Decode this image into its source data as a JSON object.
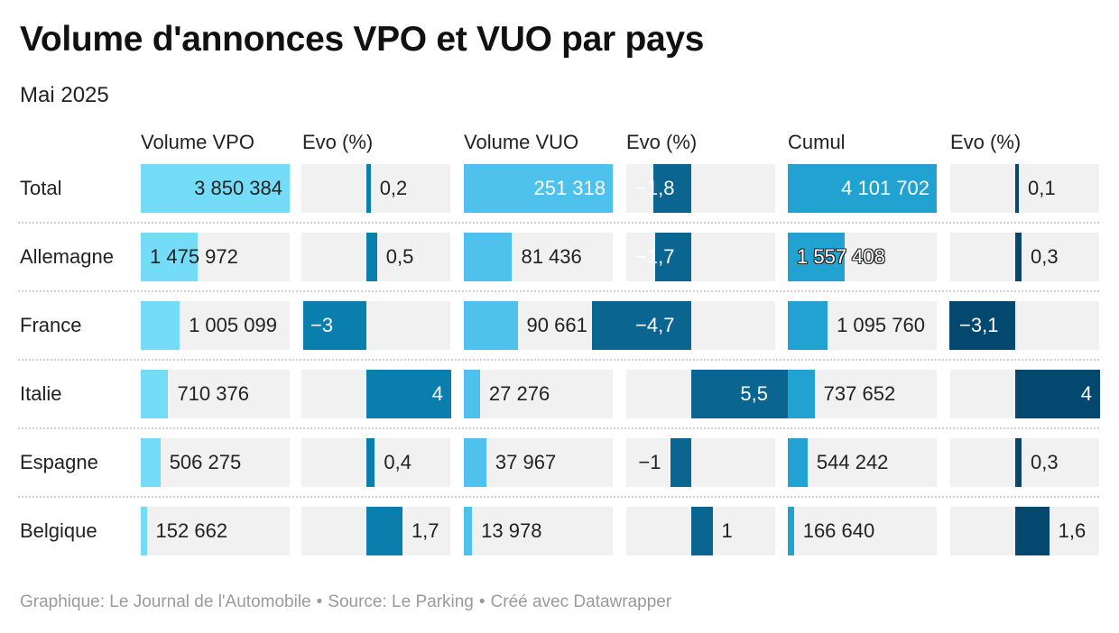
{
  "title": "Volume d'annonces VPO et VUO par pays",
  "subtitle": "Mai 2025",
  "columns": [
    "Volume VPO",
    "Evo (%)",
    "Volume VUO",
    "Evo (%)",
    "Cumul",
    "Evo (%)"
  ],
  "footer": {
    "credit": "Graphique: Le Journal de l'Automobile",
    "source": "Source: Le Parking",
    "tool": "Créé avec Datawrapper"
  },
  "colors": {
    "vpo": "#74dcf6",
    "vuo": "#4ec1ec",
    "cumul": "#22a2d0",
    "evo_vpo": "#0a7fad",
    "evo_vuo": "#0a6591",
    "evo_cumul": "#04476f",
    "cell_bg": "#f1f1f1"
  },
  "chart_data": {
    "type": "table",
    "rows": [
      {
        "country": "Total",
        "vpo": 3850384,
        "vpo_label": "3 850 384",
        "evo_vpo": 0.2,
        "evo_vpo_label": "0,2",
        "vuo": 251318,
        "vuo_label": "251 318",
        "evo_vuo": -1.8,
        "evo_vuo_label": "−1,8",
        "cumul": 4101702,
        "cumul_label": "4 101 702",
        "evo_cumul": 0.1,
        "evo_cumul_label": "0,1"
      },
      {
        "country": "Allemagne",
        "vpo": 1475972,
        "vpo_label": "1 475 972",
        "evo_vpo": 0.5,
        "evo_vpo_label": "0,5",
        "vuo": 81436,
        "vuo_label": "81 436",
        "evo_vuo": -1.7,
        "evo_vuo_label": "−1,7",
        "cumul": 1557408,
        "cumul_label": "1 557 408",
        "evo_cumul": 0.3,
        "evo_cumul_label": "0,3"
      },
      {
        "country": "France",
        "vpo": 1005099,
        "vpo_label": "1 005 099",
        "evo_vpo": -3,
        "evo_vpo_label": "−3",
        "vuo": 90661,
        "vuo_label": "90 661",
        "evo_vuo": -4.7,
        "evo_vuo_label": "−4,7",
        "cumul": 1095760,
        "cumul_label": "1 095 760",
        "evo_cumul": -3.1,
        "evo_cumul_label": "−3,1"
      },
      {
        "country": "Italie",
        "vpo": 710376,
        "vpo_label": "710 376",
        "evo_vpo": 4,
        "evo_vpo_label": "4",
        "vuo": 27276,
        "vuo_label": "27 276",
        "evo_vuo": 5.5,
        "evo_vuo_label": "5,5",
        "cumul": 737652,
        "cumul_label": "737 652",
        "evo_cumul": 4,
        "evo_cumul_label": "4"
      },
      {
        "country": "Espagne",
        "vpo": 506275,
        "vpo_label": "506 275",
        "evo_vpo": 0.4,
        "evo_vpo_label": "0,4",
        "vuo": 37967,
        "vuo_label": "37 967",
        "evo_vuo": -1,
        "evo_vuo_label": "−1",
        "cumul": 544242,
        "cumul_label": "544 242",
        "evo_cumul": 0.3,
        "evo_cumul_label": "0,3"
      },
      {
        "country": "Belgique",
        "vpo": 152662,
        "vpo_label": "152 662",
        "evo_vpo": 1.7,
        "evo_vpo_label": "1,7",
        "vuo": 13978,
        "vuo_label": "13 978",
        "evo_vuo": 1,
        "evo_vuo_label": "1",
        "cumul": 166640,
        "cumul_label": "166 640",
        "evo_cumul": 1.6,
        "evo_cumul_label": "1,6"
      }
    ]
  }
}
